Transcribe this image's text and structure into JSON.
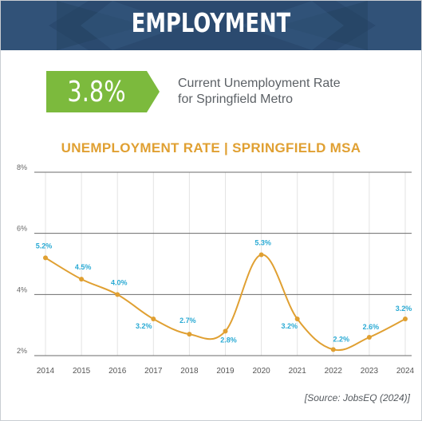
{
  "banner": {
    "title": "EMPLOYMENT"
  },
  "callout": {
    "value": "3.8%",
    "line1": "Current Unemployment Rate",
    "line2": "for Springfield Metro"
  },
  "source": "[Source: JobsEQ (2024)]",
  "colors": {
    "banner": "#2b4a6f",
    "callout_green": "#7cba3d",
    "line": "#e0a032",
    "data_label": "#2aaad4",
    "grid": "#6b6b6b"
  },
  "chart_data": {
    "type": "line",
    "title": "UNEMPLOYMENT RATE | SPRINGFIELD MSA",
    "xlabel": "",
    "ylabel": "",
    "categories": [
      "2014",
      "2015",
      "2016",
      "2017",
      "2018",
      "2019",
      "2020",
      "2021",
      "2022",
      "2023",
      "2024"
    ],
    "series": [
      {
        "values": [
          5.2,
          4.5,
          4.0,
          3.2,
          2.7,
          2.8,
          5.3,
          3.2,
          2.2,
          2.6,
          3.2
        ]
      }
    ],
    "data_labels": [
      "5.2%",
      "4.5%",
      "4.0%",
      "3.2%",
      "2.7%",
      "2.8%",
      "5.3%",
      "3.2%",
      "2.2%",
      "2.6%",
      "3.2%"
    ],
    "ylim": [
      2,
      8
    ],
    "yticks": [
      2,
      4,
      6,
      8
    ],
    "ytick_labels": [
      "2%",
      "4%",
      "6%",
      "8%"
    ],
    "grid": true,
    "smooth": true
  }
}
